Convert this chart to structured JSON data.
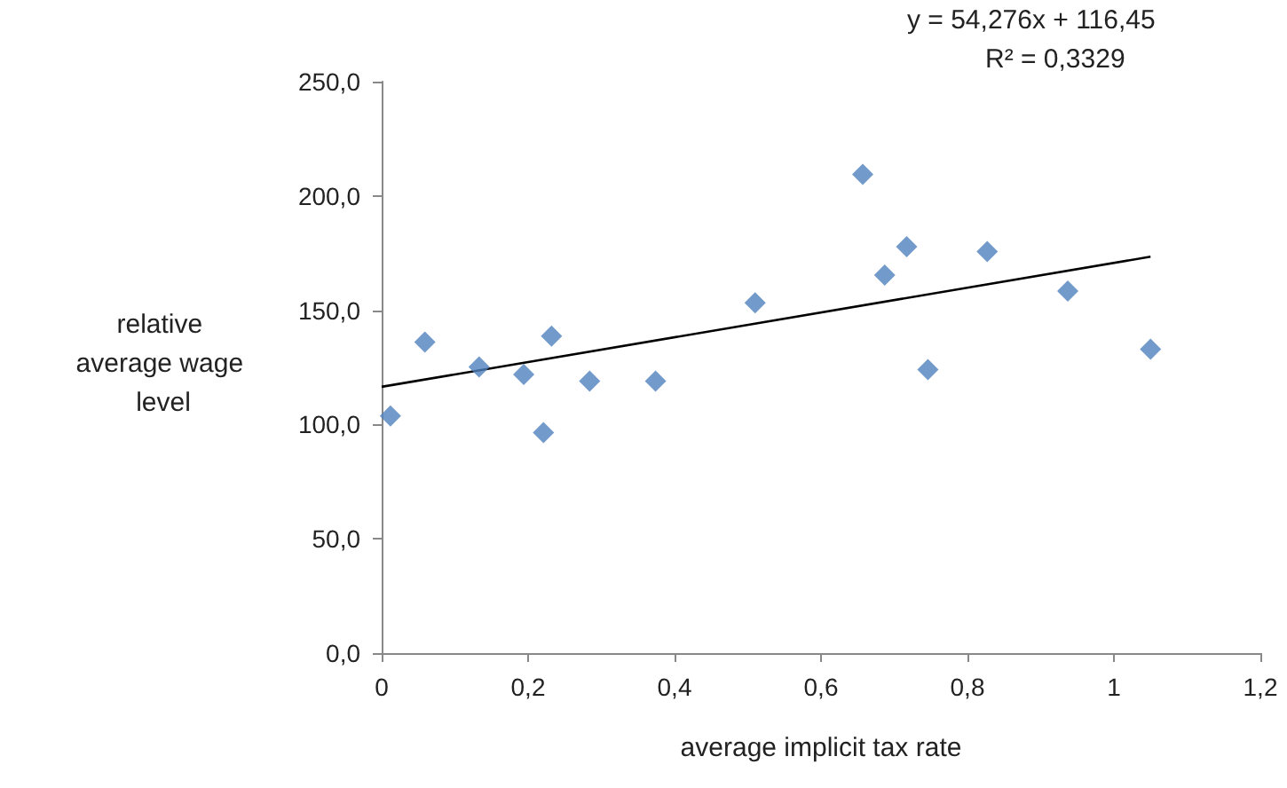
{
  "chart_data": {
    "type": "scatter",
    "xlabel": "average implicit tax rate",
    "ylabel": "relative average wage level",
    "annotations": [
      "y = 54,276x + 116,45",
      "R² = 0,3329"
    ],
    "series": [
      {
        "color": "#4f81bd",
        "marker": "diamond",
        "x": [
          0.012,
          0.059,
          0.133,
          0.194,
          0.221,
          0.232,
          0.284,
          0.374,
          0.51,
          0.657,
          0.687,
          0.717,
          0.746,
          0.827,
          0.937,
          1.05
        ],
        "values": [
          103.7,
          136.1,
          125.2,
          121.9,
          96.5,
          138.7,
          119.0,
          119.0,
          153.2,
          209.4,
          165.4,
          177.8,
          124.0,
          175.7,
          158.4,
          133.0
        ]
      },
      {
        "type": "line",
        "color": "#000000",
        "marker": "none",
        "x": [
          0,
          1.05
        ],
        "values": [
          116.5,
          173.4
        ]
      }
    ],
    "xlim": [
      0,
      1.2
    ],
    "xticks": [
      {
        "value": 0,
        "label": "0"
      },
      {
        "value": 0.2,
        "label": "0,2"
      },
      {
        "value": 0.4,
        "label": "0,4"
      },
      {
        "value": 0.6,
        "label": "0,6"
      },
      {
        "value": 0.8,
        "label": "0,8"
      },
      {
        "value": 1,
        "label": "1"
      },
      {
        "value": 1.2,
        "label": "1,2"
      }
    ],
    "ylim": [
      0,
      250
    ],
    "yticks": [
      {
        "value": 0,
        "label": "0,0"
      },
      {
        "value": 50,
        "label": "50,0"
      },
      {
        "value": 100,
        "label": "100,0"
      },
      {
        "value": 150,
        "label": "150,0"
      },
      {
        "value": 200,
        "label": "200,0"
      },
      {
        "value": 250,
        "label": "250,0"
      }
    ],
    "grid": false
  }
}
